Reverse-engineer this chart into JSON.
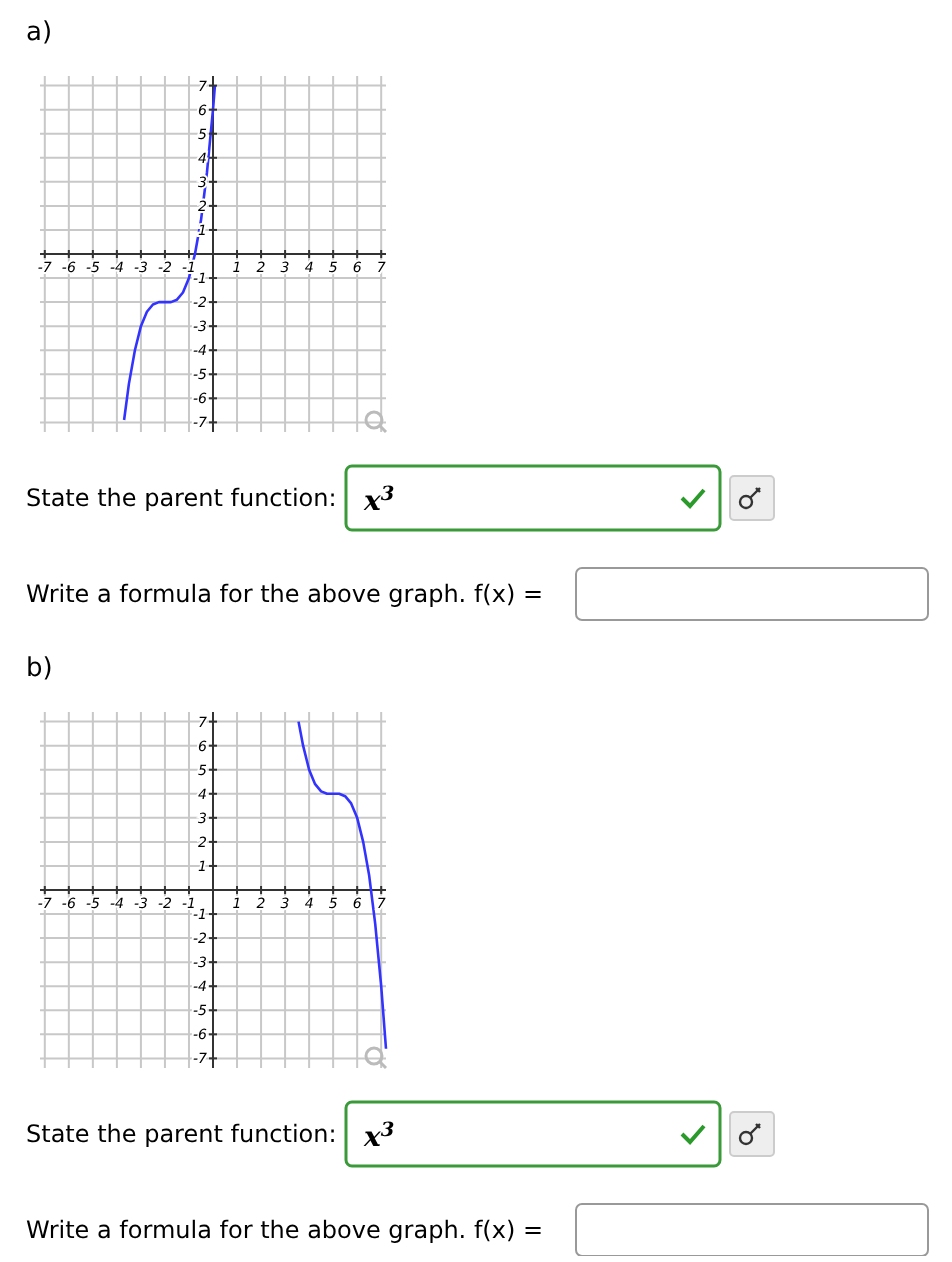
{
  "chart_data": [
    {
      "type": "line",
      "title": "a)",
      "x": [
        -3.7,
        -3.5,
        -3.25,
        -3,
        -2.75,
        -2.5,
        -2.25,
        -2,
        -1.75,
        -1.5,
        -1.25,
        -1,
        -0.75,
        -0.5,
        -0.25,
        0,
        0.08
      ],
      "series": [
        {
          "color": "#3333ff",
          "values": [
            -6.9,
            -5.4,
            -4,
            -3,
            -2.4,
            -2.1,
            -2,
            -2,
            -2,
            -1.9,
            -1.6,
            -1,
            0,
            1.4,
            3.4,
            6,
            7
          ]
        }
      ],
      "xlim": [
        -7.2,
        7.2
      ],
      "ylim": [
        -7.4,
        7.4
      ],
      "xticks": [
        -7,
        -6,
        -5,
        -4,
        -3,
        -2,
        -1,
        {
          "value": 0,
          "label": null
        },
        1,
        2,
        3,
        4,
        5,
        6,
        7
      ],
      "yticks": [
        -7,
        -6,
        -5,
        -4,
        -3,
        -2,
        -1,
        {
          "value": 0,
          "label": null
        },
        1,
        2,
        3,
        4,
        5,
        6,
        7
      ],
      "grid": true,
      "marker": "none",
      "line_style": "solid",
      "annotations": [
        "State the parent function:",
        "x$^{3}$",
        "Write a formula for the above graph. f(x) ="
      ]
    },
    {
      "type": "line",
      "title": "b)",
      "x": [
        3.56,
        3.75,
        4,
        4.25,
        4.5,
        4.75,
        5,
        5.25,
        5.5,
        5.75,
        6,
        6.25,
        6.5,
        6.75,
        7,
        7.2
      ],
      "series": [
        {
          "color": "#3333ff",
          "values": [
            7,
            6,
            5,
            4.4,
            4.1,
            4,
            4,
            4,
            3.9,
            3.6,
            3,
            2,
            0.6,
            -1.4,
            -4,
            -6.6
          ]
        }
      ],
      "xlim": [
        -7.2,
        7.2
      ],
      "ylim": [
        -7.4,
        7.4
      ],
      "xticks": [
        -7,
        -6,
        -5,
        -4,
        -3,
        -2,
        -1,
        {
          "value": 0,
          "label": null
        },
        1,
        2,
        3,
        4,
        5,
        6,
        7
      ],
      "yticks": [
        -7,
        -6,
        -5,
        -4,
        -3,
        -2,
        -1,
        {
          "value": 0,
          "label": null
        },
        1,
        2,
        3,
        4,
        5,
        6,
        7
      ],
      "grid": true,
      "marker": "none",
      "line_style": "solid",
      "annotations": [
        "State the parent function:",
        "x$^{3}$",
        "Write a formula for the above graph. f(x) ="
      ]
    }
  ]
}
